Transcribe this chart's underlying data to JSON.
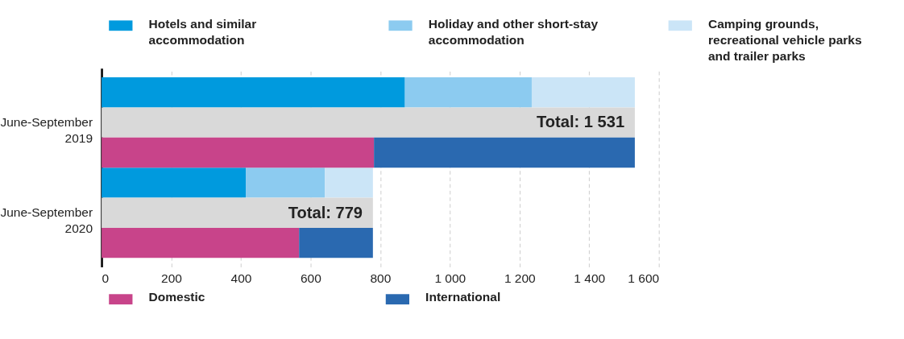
{
  "chart_data": {
    "type": "bar",
    "orientation": "horizontal",
    "stacked": true,
    "legend": "top",
    "grid": "x",
    "categories": [
      null,
      "June-September 2019",
      null,
      null,
      "June-September 2020",
      null
    ],
    "series": [
      {
        "name": "Hotels and similar accommodation",
        "color": "#009ade",
        "values": [
          871,
          null,
          null,
          414,
          null,
          null
        ]
      },
      {
        "name": "Holiday and other short-stay accommodation",
        "color": "#8ccbf0",
        "values": [
          364,
          null,
          null,
          227,
          null,
          null
        ]
      },
      {
        "name": "Camping grounds, recreational vehicle parks and trailer parks",
        "color": "#cbe5f7",
        "values": [
          296,
          null,
          null,
          138,
          null,
          null
        ]
      },
      {
        "color": "#d9d9d9",
        "values": [
          null,
          1531,
          null,
          null,
          779,
          null
        ],
        "value_labels": [
          null,
          "Total: 1 531",
          null,
          null,
          "Total: 779",
          null
        ]
      },
      {
        "name": "Domestic",
        "color": "#c8448a",
        "values": [
          null,
          null,
          782,
          null,
          null,
          567
        ]
      },
      {
        "name": "International",
        "color": "#2a69b0",
        "values": [
          null,
          null,
          749,
          null,
          null,
          212
        ]
      }
    ],
    "xlim": [
      0,
      1600
    ],
    "xticks": [
      0,
      200,
      400,
      600,
      800,
      {
        "value": 1000,
        "label": "1 000"
      },
      {
        "value": 1200,
        "label": "1 200"
      },
      {
        "value": 1400,
        "label": "1 400"
      },
      {
        "value": 1600,
        "label": "1 600"
      }
    ]
  }
}
